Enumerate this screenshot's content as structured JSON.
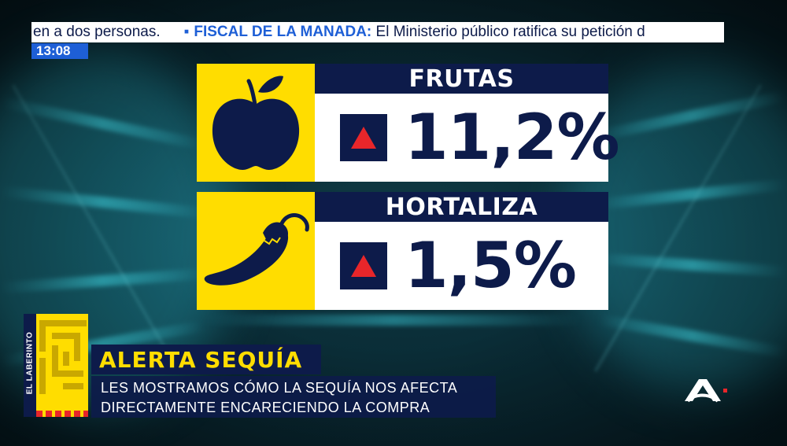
{
  "ticker": {
    "lead_text": "en a dos personas.",
    "headline": "FISCAL DE LA MANADA:",
    "text": "El Ministerio público ratifica su petición d"
  },
  "clock": "13:08",
  "cards": [
    {
      "label": "FRUTAS",
      "value": "11,2%",
      "icon": "apple-icon",
      "trend": "up-triangle-icon"
    },
    {
      "label": "HORTALIZA",
      "value": "1,5%",
      "icon": "chili-pepper-icon",
      "trend": "up-triangle-icon"
    }
  ],
  "lower_third": {
    "show_name": "EL LABERINTO",
    "title": "ALERTA SEQUÍA",
    "subtitle_line1": "LES MOSTRAMOS CÓMO LA SEQUÍA NOS AFECTA",
    "subtitle_line2": "DIRECTAMENTE ENCARECIENDO LA COMPRA"
  },
  "channel_logo": "antena3-logo-icon",
  "colors": {
    "navy": "#0d1b4a",
    "yellow": "#ffdd00",
    "ticker_blue": "#1e5fd6",
    "up_red": "#e8262a",
    "background_teal": "#0f3a44"
  }
}
